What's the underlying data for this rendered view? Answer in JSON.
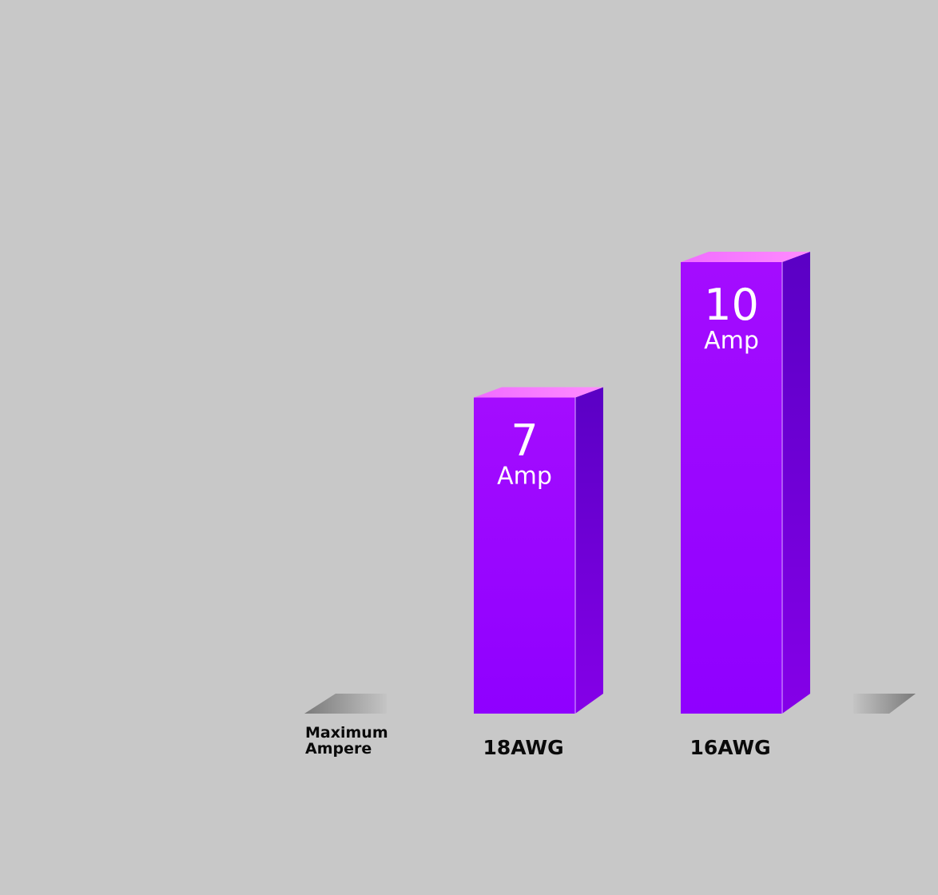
{
  "chart_data": {
    "type": "bar",
    "title": "",
    "xlabel": "",
    "ylabel": "",
    "metric_label": [
      "Maximum",
      "Ampere"
    ],
    "categories": [
      "18AWG",
      "16AWG"
    ],
    "series": [
      {
        "name": "",
        "values": [
          7,
          10
        ],
        "value_labels": [
          {
            "number": "7",
            "unit": "Amp"
          },
          {
            "number": "10",
            "unit": "Amp"
          }
        ]
      }
    ],
    "ylim": [
      0,
      10
    ],
    "grid": false,
    "legend": "none",
    "colors": {
      "bar_front_top": "#a40cff",
      "bar_front_bottom": "#8f00ff",
      "bar_side_top": "#5a00c4",
      "bar_side_bottom": "#8500e8",
      "bar_top_face": "#f06cff",
      "floor_marker": "#8a8a8a",
      "label_text": "#ffffff",
      "category_text": "#0a0a0a",
      "background": "#c8c8c8"
    }
  }
}
